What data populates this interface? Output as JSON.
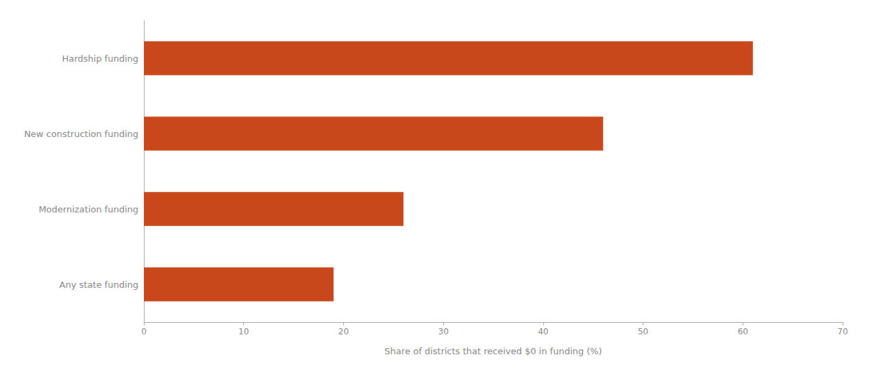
{
  "chart_data": {
    "type": "bar",
    "orientation": "horizontal",
    "categories": [
      "Any state funding",
      "Modernization funding",
      "New construction funding",
      "Hardship funding"
    ],
    "values": [
      19,
      26,
      46,
      61
    ],
    "color": "#C8471B",
    "xlabel": "Share of districts that received $0 in funding (%)",
    "xlim": [
      0,
      70
    ],
    "xticks": [
      0,
      10,
      20,
      30,
      40,
      50,
      60,
      70
    ],
    "grid": false
  }
}
